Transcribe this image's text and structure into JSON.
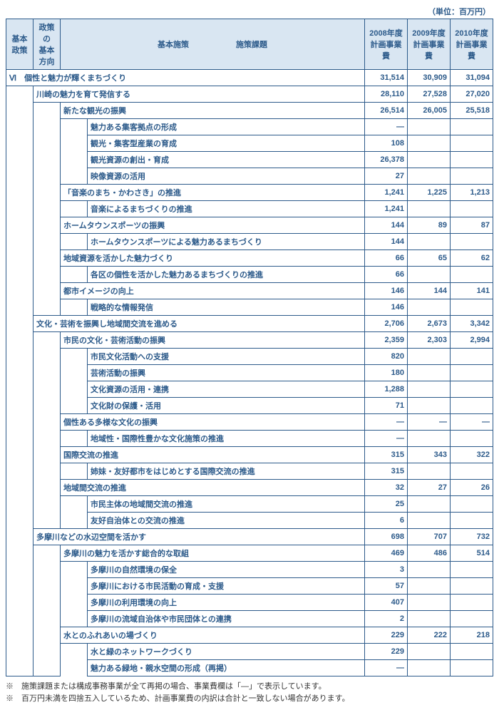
{
  "unit_label": "（単位：百万円）",
  "headers": {
    "h1": "基本政策",
    "h2": "政策の\n基本方向",
    "h3": "基本施策",
    "h4": "施策課題",
    "h5": "2008年度\n計画事業費",
    "h6": "2009年度\n計画事業費",
    "h7": "2010年度\n計画事業費"
  },
  "main": {
    "code": "Ⅵ",
    "title": "個性と魅力が輝くまちづくり",
    "v08": "31,514",
    "v09": "30,909",
    "v10": "31,094"
  },
  "rows": [
    {
      "lv": 1,
      "lbl": "川崎の魅力を育て発信する",
      "v08": "28,110",
      "v09": "27,528",
      "v10": "27,020"
    },
    {
      "lv": 2,
      "lbl": "新たな観光の振興",
      "v08": "26,514",
      "v09": "26,005",
      "v10": "25,518"
    },
    {
      "lv": 3,
      "lbl": "魅力ある集客拠点の形成",
      "v08": "—",
      "v09": "",
      "v10": ""
    },
    {
      "lv": 3,
      "lbl": "観光・集客型産業の育成",
      "v08": "108",
      "v09": "",
      "v10": ""
    },
    {
      "lv": 3,
      "lbl": "観光資源の創出・育成",
      "v08": "26,378",
      "v09": "",
      "v10": ""
    },
    {
      "lv": 3,
      "lbl": "映像資源の活用",
      "v08": "27",
      "v09": "",
      "v10": ""
    },
    {
      "lv": 2,
      "lbl": "「音楽のまち・かわさき」の推進",
      "v08": "1,241",
      "v09": "1,225",
      "v10": "1,213"
    },
    {
      "lv": 3,
      "lbl": "音楽によるまちづくりの推進",
      "v08": "1,241",
      "v09": "",
      "v10": ""
    },
    {
      "lv": 2,
      "lbl": "ホームタウンスポーツの振興",
      "v08": "144",
      "v09": "89",
      "v10": "87"
    },
    {
      "lv": 3,
      "lbl": "ホームタウンスポーツによる魅力あるまちづくり",
      "v08": "144",
      "v09": "",
      "v10": ""
    },
    {
      "lv": 2,
      "lbl": "地域資源を活かした魅力づくり",
      "v08": "66",
      "v09": "65",
      "v10": "62"
    },
    {
      "lv": 3,
      "lbl": "各区の個性を活かした魅力あるまちづくりの推進",
      "v08": "66",
      "v09": "",
      "v10": ""
    },
    {
      "lv": 2,
      "lbl": "都市イメージの向上",
      "v08": "146",
      "v09": "144",
      "v10": "141"
    },
    {
      "lv": 3,
      "lbl": "戦略的な情報発信",
      "v08": "146",
      "v09": "",
      "v10": ""
    },
    {
      "lv": 1,
      "lbl": "文化・芸術を振興し地域間交流を進める",
      "v08": "2,706",
      "v09": "2,673",
      "v10": "3,342"
    },
    {
      "lv": 2,
      "lbl": "市民の文化・芸術活動の振興",
      "v08": "2,359",
      "v09": "2,303",
      "v10": "2,994"
    },
    {
      "lv": 3,
      "lbl": "市民文化活動への支援",
      "v08": "820",
      "v09": "",
      "v10": ""
    },
    {
      "lv": 3,
      "lbl": "芸術活動の振興",
      "v08": "180",
      "v09": "",
      "v10": ""
    },
    {
      "lv": 3,
      "lbl": "文化資源の活用・連携",
      "v08": "1,288",
      "v09": "",
      "v10": ""
    },
    {
      "lv": 3,
      "lbl": "文化財の保護・活用",
      "v08": "71",
      "v09": "",
      "v10": ""
    },
    {
      "lv": 2,
      "lbl": "個性ある多様な文化の振興",
      "v08": "—",
      "v09": "—",
      "v10": "—"
    },
    {
      "lv": 3,
      "lbl": "地域性・国際性豊かな文化施策の推進",
      "v08": "—",
      "v09": "",
      "v10": ""
    },
    {
      "lv": 2,
      "lbl": "国際交流の推進",
      "v08": "315",
      "v09": "343",
      "v10": "322"
    },
    {
      "lv": 3,
      "lbl": "姉妹・友好都市をはじめとする国際交流の推進",
      "v08": "315",
      "v09": "",
      "v10": ""
    },
    {
      "lv": 2,
      "lbl": "地域間交流の推進",
      "v08": "32",
      "v09": "27",
      "v10": "26"
    },
    {
      "lv": 3,
      "lbl": "市民主体の地域間交流の推進",
      "v08": "25",
      "v09": "",
      "v10": ""
    },
    {
      "lv": 3,
      "lbl": "友好自治体との交流の推進",
      "v08": "6",
      "v09": "",
      "v10": ""
    },
    {
      "lv": 1,
      "lbl": "多摩川などの水辺空間を活かす",
      "v08": "698",
      "v09": "707",
      "v10": "732"
    },
    {
      "lv": 2,
      "lbl": "多摩川の魅力を活かす総合的な取組",
      "v08": "469",
      "v09": "486",
      "v10": "514"
    },
    {
      "lv": 3,
      "lbl": "多摩川の自然環境の保全",
      "v08": "3",
      "v09": "",
      "v10": ""
    },
    {
      "lv": 3,
      "lbl": "多摩川における市民活動の育成・支援",
      "v08": "57",
      "v09": "",
      "v10": ""
    },
    {
      "lv": 3,
      "lbl": "多摩川の利用環境の向上",
      "v08": "407",
      "v09": "",
      "v10": ""
    },
    {
      "lv": 3,
      "lbl": "多摩川の流域自治体や市民団体との連携",
      "v08": "2",
      "v09": "",
      "v10": ""
    },
    {
      "lv": 2,
      "lbl": "水とのふれあいの場づくり",
      "v08": "229",
      "v09": "222",
      "v10": "218"
    },
    {
      "lv": 3,
      "lbl": "水と緑のネットワークづくり",
      "v08": "229",
      "v09": "",
      "v10": ""
    },
    {
      "lv": 3,
      "lbl": "魅力ある緑地・親水空間の形成（再掲）",
      "v08": "—",
      "v09": "",
      "v10": ""
    }
  ],
  "notes": {
    "n1": "※　施策課題または構成事務事業が全て再掲の場合、事業費欄は「—」で表示しています。",
    "n2": "※　百万円未満を四捨五入しているため、計画事業費の内訳は合計と一致しない場合があります。"
  }
}
